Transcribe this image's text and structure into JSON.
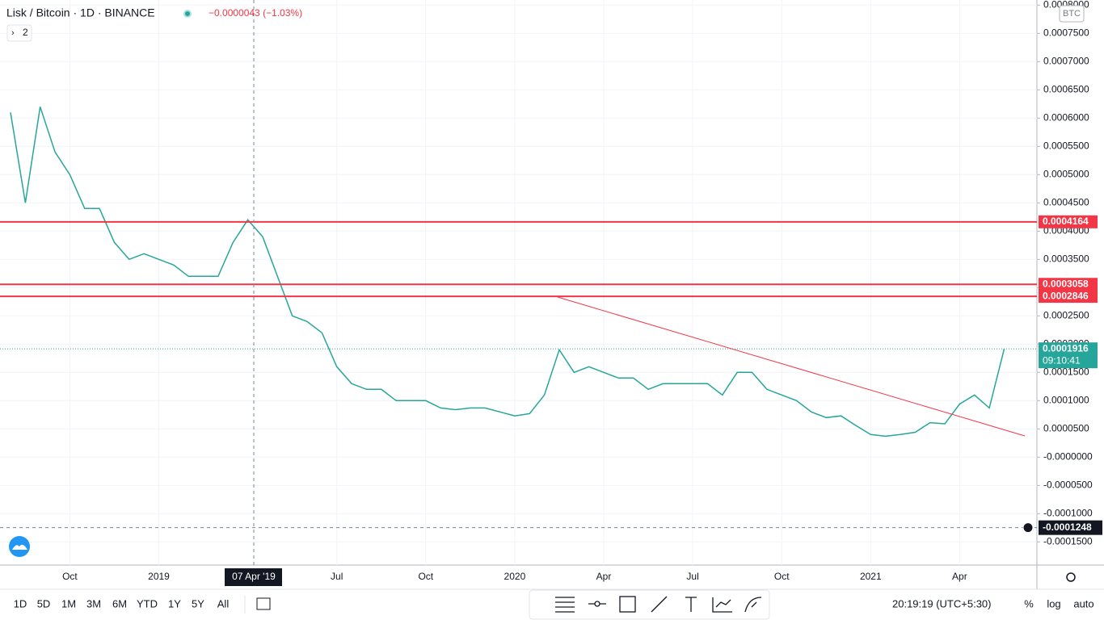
{
  "header": {
    "symbol": "Lisk / Bitcoin · 1D · BINANCE",
    "change": "−0.0000043 (−1.03%)",
    "indicators": "2",
    "currency": "BTC"
  },
  "chart_data": {
    "type": "line",
    "color": "#26a69a",
    "categories": [
      null,
      null,
      null,
      null,
      "Oct",
      null,
      null,
      null,
      null,
      null,
      "2019",
      null,
      null,
      null,
      null,
      null,
      null,
      null,
      null,
      null,
      null,
      null,
      "Jul",
      null,
      null,
      null,
      null,
      null,
      "Oct",
      null,
      null,
      null,
      null,
      null,
      "2020",
      null,
      null,
      null,
      null,
      null,
      "Apr",
      null,
      null,
      null,
      null,
      null,
      "Jul",
      null,
      null,
      null,
      null,
      null,
      "Oct",
      null,
      null,
      null,
      null,
      null,
      "2021",
      null,
      null,
      null,
      null,
      null,
      "Apr",
      null,
      null,
      null
    ],
    "values": [
      0.00061,
      0.00045,
      0.00062,
      0.00054,
      0.0005,
      0.00044,
      0.00044,
      0.00038,
      0.00035,
      0.00036,
      0.00035,
      0.00034,
      0.00032,
      0.00032,
      0.00032,
      0.00038,
      0.00042,
      0.00039,
      0.00032,
      0.00025,
      0.00024,
      0.00022,
      0.00016,
      0.00013,
      0.00012,
      0.00012,
      0.0001,
      0.0001,
      0.0001,
      8.7e-05,
      8.4e-05,
      8.7e-05,
      8.7e-05,
      8e-05,
      7.3e-05,
      7.7e-05,
      0.00011,
      0.00019,
      0.00015,
      0.00016,
      0.00015,
      0.00014,
      0.00014,
      0.00012,
      0.00013,
      0.00013,
      0.00013,
      0.00013,
      0.00011,
      0.00015,
      0.00015,
      0.00012,
      0.00011,
      0.0001,
      8e-05,
      7e-05,
      7.3e-05,
      5.6e-05,
      4e-05,
      3.7e-05,
      4e-05,
      4.4e-05,
      6.1e-05,
      5.9e-05,
      9.4e-05,
      0.00011,
      8.7e-05,
      0.0001916
    ],
    "ylim": [
      -0.000191,
      0.000809
    ],
    "yticks": [
      {
        "value": 0.0008,
        "label": "0.0008000"
      },
      {
        "value": 0.00075,
        "label": "0.0007500"
      },
      {
        "value": 0.0007,
        "label": "0.0007000"
      },
      {
        "value": 0.00065,
        "label": "0.0006500"
      },
      {
        "value": 0.0006,
        "label": "0.0006000"
      },
      {
        "value": 0.00055,
        "label": "0.0005500"
      },
      {
        "value": 0.0005,
        "label": "0.0005000"
      },
      {
        "value": 0.00045,
        "label": "0.0004500"
      },
      {
        "value": 0.0004,
        "label": "0.0004000"
      },
      {
        "value": 0.00035,
        "label": "0.0003500"
      },
      {
        "value": 0.0003,
        "label": "0.0003000"
      },
      {
        "value": 0.00025,
        "label": "0.0002500"
      },
      {
        "value": 0.0002,
        "label": "0.0002000"
      },
      {
        "value": 0.00015,
        "label": "0.0001500"
      },
      {
        "value": 0.0001,
        "label": "0.0001000"
      },
      {
        "value": 5e-05,
        "label": "0.0000500"
      },
      {
        "value": 0,
        "label": "-0.0000000"
      },
      {
        "value": -5e-05,
        "label": "-0.0000500"
      },
      {
        "value": -0.0001,
        "label": "-0.0001000"
      },
      {
        "value": -0.00015,
        "label": "-0.0001500"
      }
    ],
    "grid": true,
    "levels": [
      0.0004164,
      0.0003058,
      0.0002846
    ],
    "level_color": "#f23645",
    "last_price": 0.0001916,
    "countdown": "09:10:41",
    "crosshair_price": -0.0001248,
    "crosshair_date": "07 Apr '19"
  },
  "toolbar": {
    "intervals": [
      "1D",
      "5D",
      "1M",
      "3M",
      "6M",
      "YTD",
      "1Y",
      "5Y",
      "All"
    ],
    "clock": "20:19:19 (UTC+5:30)",
    "modes": [
      "%",
      "log",
      "auto"
    ]
  }
}
